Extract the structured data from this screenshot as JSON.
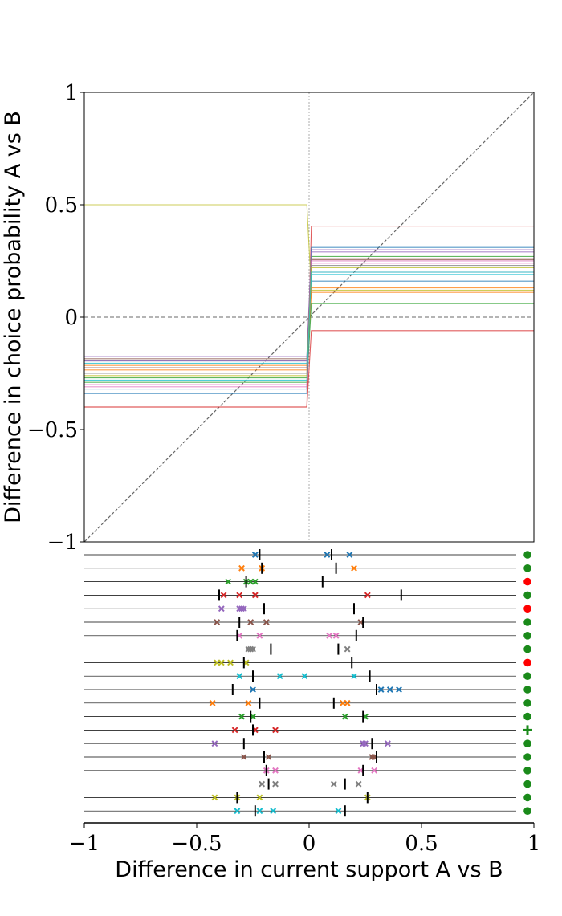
{
  "chart_data": [
    {
      "type": "line",
      "ylabel": "Difference in choice probability A vs B",
      "xlim": [
        -1,
        1
      ],
      "ylim": [
        -1,
        1
      ],
      "yticks": [
        {
          "value": 1,
          "label": "1"
        },
        {
          "value": 0.5,
          "label": "0.5"
        },
        {
          "value": 0,
          "label": "0"
        },
        {
          "value": -0.5,
          "label": "−0.5"
        },
        {
          "value": -1,
          "label": "−1"
        }
      ],
      "reference_lines": {
        "diagonal": true,
        "horizontal_zero": true,
        "vertical_zero": true
      },
      "transition": {
        "x_start": -0.01,
        "x_end": 0.01
      },
      "series": [
        {
          "color": "#1f77b4",
          "left": -0.34,
          "right": 0.16
        },
        {
          "color": "#ff7f0e",
          "left": -0.235,
          "right": 0.11
        },
        {
          "color": "#2ca02c",
          "left": -0.29,
          "right": 0.06
        },
        {
          "color": "#d62728",
          "left": -0.4,
          "right": 0.405
        },
        {
          "color": "#d62728",
          "left": -0.4,
          "right": -0.06
        },
        {
          "color": "#9467bd",
          "left": -0.175,
          "right": 0.3
        },
        {
          "color": "#8c564b",
          "left": -0.185,
          "right": 0.26
        },
        {
          "color": "#e377c2",
          "left": -0.31,
          "right": 0.24
        },
        {
          "color": "#7f7f7f",
          "left": -0.195,
          "right": 0.2
        },
        {
          "color": "#bcbd22",
          "left": 0.5,
          "right": 0.12
        },
        {
          "color": "#17becf",
          "left": -0.205,
          "right": 0.19
        },
        {
          "color": "#1f77b4",
          "left": -0.32,
          "right": 0.31
        },
        {
          "color": "#ff7f0e",
          "left": -0.215,
          "right": 0.13
        },
        {
          "color": "#2ca02c",
          "left": -0.27,
          "right": 0.27
        },
        {
          "color": "#8c564b",
          "left": -0.225,
          "right": 0.255
        },
        {
          "color": "#9467bd",
          "left": -0.195,
          "right": 0.29
        },
        {
          "color": "#e377c2",
          "left": -0.3,
          "right": 0.25
        },
        {
          "color": "#7f7f7f",
          "left": -0.25,
          "right": 0.23
        },
        {
          "color": "#bcbd22",
          "left": -0.26,
          "right": 0.22
        },
        {
          "color": "#17becf",
          "left": -0.28,
          "right": 0.2
        }
      ]
    },
    {
      "type": "scatter",
      "xlabel": "Difference in current support A vs B",
      "xlim": [
        -1,
        1
      ],
      "xticks": [
        {
          "value": -1,
          "label": "−1"
        },
        {
          "value": -0.5,
          "label": "−0.5"
        },
        {
          "value": 0,
          "label": "0"
        },
        {
          "value": 0.5,
          "label": "0.5"
        },
        {
          "value": 1,
          "label": "1"
        }
      ],
      "rows": [
        {
          "color": "#1f77b4",
          "crosses": [
            -0.24,
            0.08,
            0.18
          ],
          "means": [
            -0.22,
            0.1
          ],
          "status": "green-dot"
        },
        {
          "color": "#ff7f0e",
          "crosses": [
            -0.3,
            -0.21,
            0.2
          ],
          "means": [
            -0.21,
            0.12
          ],
          "status": "green-dot"
        },
        {
          "color": "#2ca02c",
          "crosses": [
            -0.36,
            -0.28,
            -0.26,
            -0.24
          ],
          "means": [
            -0.28,
            0.06
          ],
          "status": "red-dot"
        },
        {
          "color": "#d62728",
          "crosses": [
            -0.38,
            -0.31,
            -0.24,
            0.26
          ],
          "means": [
            -0.4,
            0.41
          ],
          "status": "green-dot"
        },
        {
          "color": "#9467bd",
          "crosses": [
            -0.39,
            -0.31,
            -0.3,
            -0.29
          ],
          "means": [
            -0.2,
            0.2
          ],
          "status": "red-dot"
        },
        {
          "color": "#8c564b",
          "crosses": [
            -0.41,
            -0.26,
            -0.19,
            0.23
          ],
          "means": [
            -0.31,
            0.24
          ],
          "status": "green-dot"
        },
        {
          "color": "#e377c2",
          "crosses": [
            -0.31,
            -0.22,
            0.09,
            0.12
          ],
          "means": [
            -0.32,
            0.21
          ],
          "status": "green-dot"
        },
        {
          "color": "#7f7f7f",
          "crosses": [
            -0.27,
            -0.26,
            -0.25,
            0.17
          ],
          "means": [
            -0.17,
            0.13
          ],
          "status": "green-dot"
        },
        {
          "color": "#bcbd22",
          "crosses": [
            -0.41,
            -0.39,
            -0.35,
            -0.28
          ],
          "means": [
            -0.29,
            0.19
          ],
          "status": "red-dot"
        },
        {
          "color": "#17becf",
          "crosses": [
            -0.31,
            -0.13,
            -0.02,
            0.2
          ],
          "means": [
            -0.25,
            0.27
          ],
          "status": "green-dot"
        },
        {
          "color": "#1f77b4",
          "crosses": [
            -0.25,
            0.32,
            0.36,
            0.4
          ],
          "means": [
            -0.34,
            0.3
          ],
          "status": "green-dot"
        },
        {
          "color": "#ff7f0e",
          "crosses": [
            -0.43,
            -0.27,
            0.15,
            0.17
          ],
          "means": [
            -0.22,
            0.11
          ],
          "status": "green-dot"
        },
        {
          "color": "#2ca02c",
          "crosses": [
            -0.3,
            -0.25,
            0.16,
            0.25
          ],
          "means": [
            -0.26,
            0.24
          ],
          "status": "green-dot"
        },
        {
          "color": "#d62728",
          "crosses": [
            -0.33,
            -0.24,
            -0.15
          ],
          "means": [
            -0.25
          ],
          "status": "green-plus"
        },
        {
          "color": "#9467bd",
          "crosses": [
            -0.42,
            0.24,
            0.25,
            0.35
          ],
          "means": [
            -0.29,
            0.28
          ],
          "status": "green-dot"
        },
        {
          "color": "#8c564b",
          "crosses": [
            -0.29,
            -0.18,
            0.28,
            0.29
          ],
          "means": [
            -0.2,
            0.3
          ],
          "status": "green-dot"
        },
        {
          "color": "#e377c2",
          "crosses": [
            -0.19,
            -0.15,
            0.23,
            0.29
          ],
          "means": [
            -0.19,
            0.24
          ],
          "status": "green-dot"
        },
        {
          "color": "#7f7f7f",
          "crosses": [
            -0.21,
            -0.15,
            0.11,
            0.22
          ],
          "means": [
            -0.18,
            0.16
          ],
          "status": "green-dot"
        },
        {
          "color": "#bcbd22",
          "crosses": [
            -0.42,
            -0.32,
            -0.22,
            0.26
          ],
          "means": [
            -0.32,
            0.26
          ],
          "status": "green-dot"
        },
        {
          "color": "#17becf",
          "crosses": [
            -0.32,
            -0.22,
            -0.16,
            0.13
          ],
          "means": [
            -0.24,
            0.16
          ],
          "status": "green-dot"
        }
      ]
    }
  ]
}
